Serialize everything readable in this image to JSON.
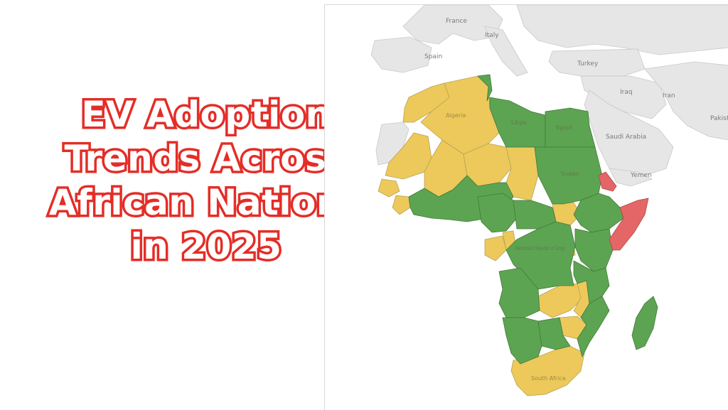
{
  "title": {
    "lines": [
      "EV Adoption",
      "Trends Across",
      "African Nations",
      "in 2025"
    ]
  },
  "map": {
    "colors": {
      "high": "#5da452",
      "medium": "#ecc95a",
      "low": "#e56667",
      "land_other": "#e6e6e6",
      "water": "#ffffff",
      "border": "#9a9a9a"
    },
    "outside_labels": [
      "France",
      "Italy",
      "Spain",
      "Turkey",
      "Iraq",
      "Iran",
      "Saudi Arabia",
      "Yemen",
      "Pakist"
    ],
    "country_labels": [
      "Algeria",
      "Libya",
      "Egypt",
      "Sudan",
      "Democratic Republic of Congo",
      "South Africa"
    ]
  }
}
